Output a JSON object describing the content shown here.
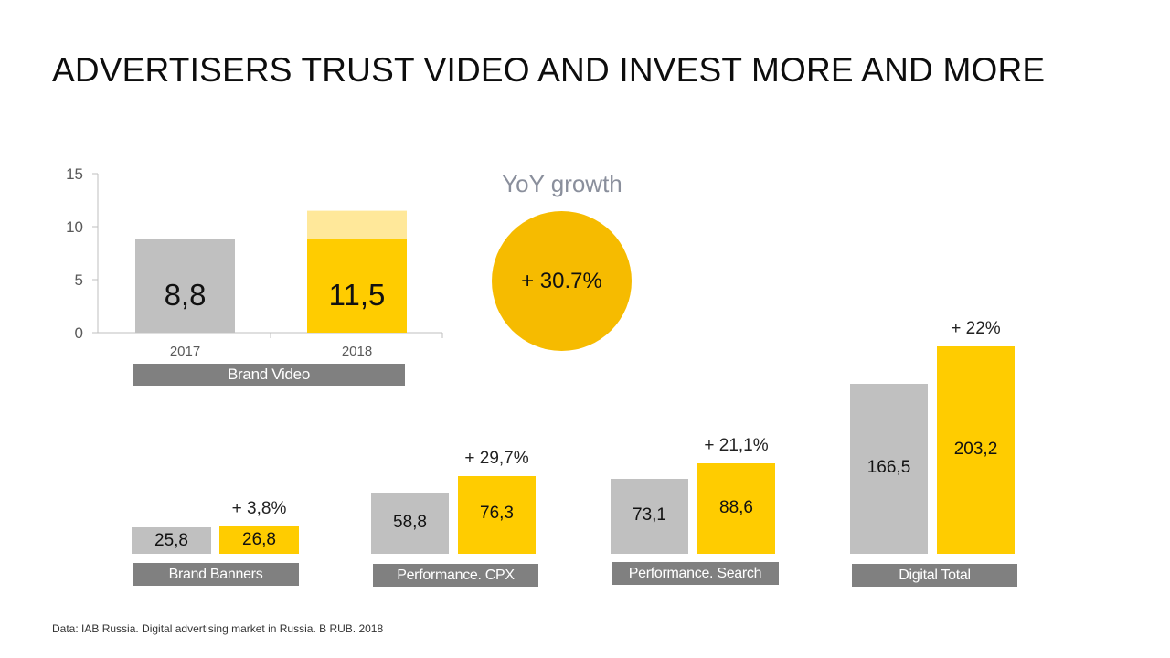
{
  "title": "ADVERTISERS TRUST VIDEO AND INVEST MORE AND MORE",
  "colors": {
    "prior_year": "#c0c0c0",
    "current_year": "#ffcc00",
    "growth_overlay": "#ffe89a",
    "caption_bg": "#808080",
    "yoy_circle": "#f6bb00"
  },
  "yoy": {
    "label": "YoY growth",
    "value": "+ 30.7%"
  },
  "chart_data": [
    {
      "type": "bar",
      "title": "Brand Video",
      "categories": [
        "2017",
        "2018"
      ],
      "values": [
        8.8,
        11.5
      ],
      "value_labels": [
        "8,8",
        "11,5"
      ],
      "y_ticks": [
        "15",
        "10",
        "5",
        "0"
      ],
      "ylim": [
        0,
        15
      ]
    },
    {
      "type": "bar",
      "title": "Brand Banners",
      "values": [
        25.8,
        26.8
      ],
      "value_labels": [
        "25,8",
        "26,8"
      ],
      "growth": "+ 3,8%"
    },
    {
      "type": "bar",
      "title": "Performance. CPX",
      "values": [
        58.8,
        76.3
      ],
      "value_labels": [
        "58,8",
        "76,3"
      ],
      "growth": "+ 29,7%"
    },
    {
      "type": "bar",
      "title": "Performance. Search",
      "values": [
        73.1,
        88.6
      ],
      "value_labels": [
        "73,1",
        "88,6"
      ],
      "growth": "+ 21,1%"
    },
    {
      "type": "bar",
      "title": "Digital Total",
      "values": [
        166.5,
        203.2
      ],
      "value_labels": [
        "166,5",
        "203,2"
      ],
      "growth": "+ 22%"
    }
  ],
  "footnote": "Data: IAB Russia. Digital advertising market in Russia. B RUB. 2018"
}
